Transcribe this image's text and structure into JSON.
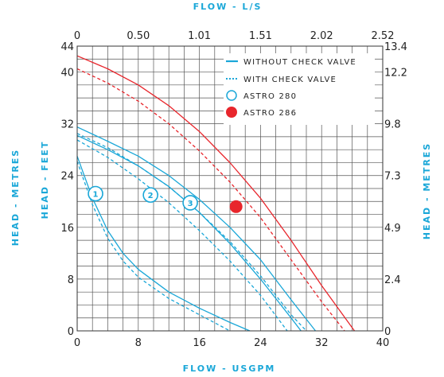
{
  "chart_data": {
    "type": "line",
    "xlabel": "FLOW - USGPM",
    "x2label": "FLOW - L/S",
    "ylabel": "HEAD - FEET",
    "y2label": "HEAD - METRES",
    "y2label_outer": "HEAD - METRES",
    "xlim": [
      0,
      40
    ],
    "ylim": [
      0,
      44
    ],
    "x_ticks": [
      "0",
      "8",
      "16",
      "24",
      "32",
      "40"
    ],
    "x2_ticks": [
      "0",
      "0.50",
      "1.01",
      "1.51",
      "2.02",
      "2.52"
    ],
    "y_ticks": [
      "0",
      "8",
      "16",
      "24",
      "32",
      "40",
      "44"
    ],
    "y2_ticks": [
      "0",
      "2.4",
      "4.9",
      "7.3",
      "9.8",
      "12.2",
      "13.4"
    ],
    "grid": true,
    "legend_position": "top-right",
    "legend": [
      {
        "label": "WITHOUT CHECK VALVE",
        "symbol": "solid-line"
      },
      {
        "label": "WITH CHECK VALVE",
        "symbol": "dotted-line"
      },
      {
        "label": "ASTRO 280",
        "symbol": "open-circle"
      },
      {
        "label": "ASTRO 286",
        "symbol": "filled-circle"
      }
    ],
    "colors": {
      "astro280": "#1aa7d8",
      "astro286": "#e8262c",
      "grid": "#555555",
      "axis_title": "#1aa7d8"
    },
    "series": [
      {
        "pump": "1",
        "model": "ASTRO 280",
        "style": "solid",
        "color": "#1aa7d8",
        "x": [
          0,
          2,
          4,
          6,
          8,
          12,
          16,
          20,
          22.6
        ],
        "y": [
          27,
          20.5,
          15.5,
          12,
          9.5,
          6,
          3.5,
          1.3,
          0
        ]
      },
      {
        "pump": "1",
        "model": "ASTRO 280",
        "style": "dashed",
        "color": "#1aa7d8",
        "x": [
          0,
          2,
          4,
          6,
          8,
          12,
          16,
          20
        ],
        "y": [
          26.2,
          19.5,
          14.3,
          10.8,
          8.3,
          5,
          2.5,
          0
        ]
      },
      {
        "pump": "2",
        "model": "ASTRO 280",
        "style": "solid",
        "color": "#1aa7d8",
        "x": [
          0,
          4,
          8,
          12,
          16,
          20,
          24,
          28,
          29.3
        ],
        "y": [
          30.2,
          28,
          25.5,
          22.3,
          18.3,
          13.5,
          8,
          2,
          0
        ]
      },
      {
        "pump": "2",
        "model": "ASTRO 280",
        "style": "dashed",
        "color": "#1aa7d8",
        "x": [
          0,
          4,
          8,
          12,
          16,
          20,
          24,
          27.5
        ],
        "y": [
          29.5,
          26.8,
          23.5,
          19.8,
          15.5,
          10.8,
          5.5,
          0
        ]
      },
      {
        "pump": "3",
        "model": "ASTRO 280",
        "style": "solid",
        "color": "#1aa7d8",
        "x": [
          0,
          4,
          8,
          12,
          16,
          20,
          24,
          28,
          31.2
        ],
        "y": [
          31.5,
          29.3,
          27,
          24,
          20.3,
          16,
          11,
          4.8,
          0
        ]
      },
      {
        "pump": "3",
        "model": "ASTRO 280",
        "style": "dashed",
        "color": "#1aa7d8",
        "x": [
          0,
          4,
          8,
          12,
          16,
          20,
          24,
          28,
          30
        ],
        "y": [
          30.5,
          28.3,
          25.5,
          22.3,
          18.3,
          13.8,
          8.5,
          2.5,
          0
        ]
      },
      {
        "pump": "",
        "model": "ASTRO 286",
        "style": "solid",
        "color": "#e8262c",
        "x": [
          0,
          4,
          8,
          12,
          16,
          20,
          24,
          28,
          32,
          36.3
        ],
        "y": [
          42.5,
          40.5,
          38,
          34.8,
          30.8,
          26,
          20.5,
          14,
          7,
          0
        ]
      },
      {
        "pump": "",
        "model": "ASTRO 286",
        "style": "dashed",
        "color": "#e8262c",
        "x": [
          0,
          4,
          8,
          12,
          16,
          20,
          24,
          28,
          32,
          35
        ],
        "y": [
          40.5,
          38.3,
          35.5,
          32,
          27.8,
          23,
          17.5,
          11,
          4.5,
          0
        ]
      }
    ],
    "markers": [
      {
        "label": "1",
        "model": "ASTRO 280",
        "x": 2.4,
        "y": 21.2,
        "filled": false
      },
      {
        "label": "2",
        "model": "ASTRO 280",
        "x": 9.6,
        "y": 21.0,
        "filled": false
      },
      {
        "label": "3",
        "model": "ASTRO 280",
        "x": 14.8,
        "y": 19.8,
        "filled": false
      },
      {
        "label": "",
        "model": "ASTRO 286",
        "x": 20.8,
        "y": 19.2,
        "filled": true
      }
    ]
  }
}
